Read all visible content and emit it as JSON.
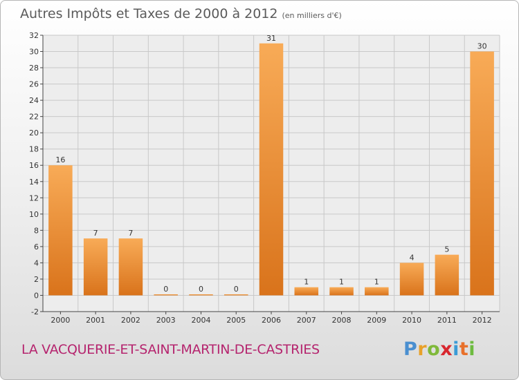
{
  "header": {
    "title": "Autres Impôts et Taxes de 2000 à 2012",
    "unit": "(en milliers d'€)"
  },
  "footer": {
    "place": "LA VACQUERIE-ET-SAINT-MARTIN-DE-CASTRIES",
    "logo_letters": [
      "P",
      "r",
      "o",
      "x",
      "i",
      "t",
      "i"
    ]
  },
  "chart_data": {
    "type": "bar",
    "title": "Autres Impôts et Taxes de 2000 à 2012",
    "subtitle": "(en milliers d'€)",
    "xlabel": "",
    "ylabel": "",
    "categories": [
      "2000",
      "2001",
      "2002",
      "2003",
      "2004",
      "2005",
      "2006",
      "2007",
      "2008",
      "2009",
      "2010",
      "2011",
      "2012"
    ],
    "values": [
      16,
      7,
      7,
      0,
      0,
      0,
      31,
      1,
      1,
      1,
      4,
      5,
      30
    ],
    "ylim": [
      -2,
      32
    ],
    "yticks": [
      -2,
      0,
      2,
      4,
      6,
      8,
      10,
      12,
      14,
      16,
      18,
      20,
      22,
      24,
      26,
      28,
      30,
      32
    ],
    "grid": true,
    "legend": "none",
    "colors": {
      "bar_light": "#f8ab57",
      "bar_dark": "#d9731b",
      "grid": "#c8c8c8",
      "plot_bg": "#ededed"
    }
  }
}
